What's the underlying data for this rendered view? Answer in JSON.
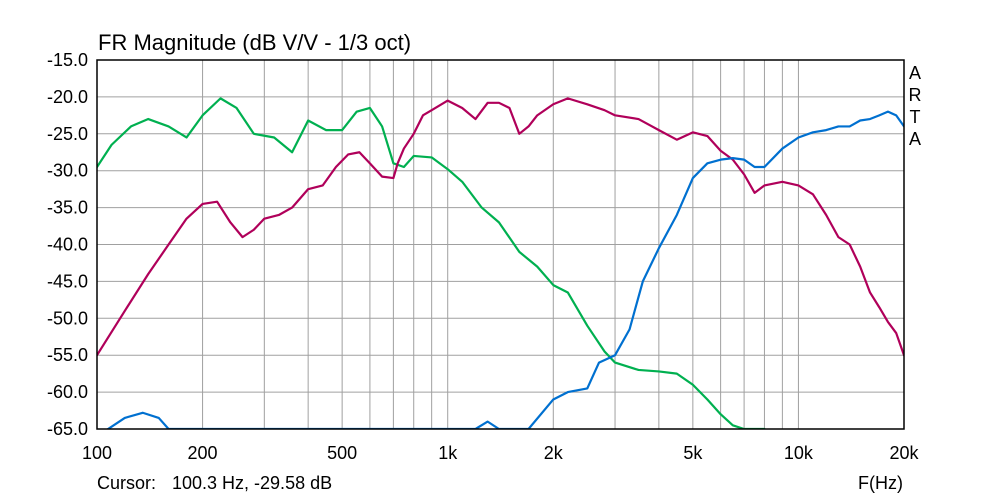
{
  "chart_data": {
    "type": "line",
    "title": "FR Magnitude (dB V/V - 1/3 oct)",
    "xlabel": "F(Hz)",
    "ylabel": "",
    "x_scale": "log",
    "xlim": [
      100,
      20000
    ],
    "ylim": [
      -65,
      -15
    ],
    "grid": true,
    "x_ticks": [
      {
        "value": 100,
        "label": "100"
      },
      {
        "value": 200,
        "label": "200"
      },
      {
        "value": 500,
        "label": "500"
      },
      {
        "value": 1000,
        "label": "1k"
      },
      {
        "value": 2000,
        "label": "2k"
      },
      {
        "value": 5000,
        "label": "5k"
      },
      {
        "value": 10000,
        "label": "10k"
      },
      {
        "value": 20000,
        "label": "20k"
      }
    ],
    "y_ticks": [
      {
        "value": -15,
        "label": "-15.0"
      },
      {
        "value": -20,
        "label": "-20.0"
      },
      {
        "value": -25,
        "label": "-25.0"
      },
      {
        "value": -30,
        "label": "-30.0"
      },
      {
        "value": -35,
        "label": "-35.0"
      },
      {
        "value": -40,
        "label": "-40.0"
      },
      {
        "value": -45,
        "label": "-45.0"
      },
      {
        "value": -50,
        "label": "-50.0"
      },
      {
        "value": -55,
        "label": "-55.0"
      },
      {
        "value": -60,
        "label": "-60.0"
      },
      {
        "value": -65,
        "label": "-65.0"
      }
    ],
    "series": [
      {
        "color": "#00b050",
        "x": [
          100,
          110,
          125,
          140,
          160,
          180,
          200,
          225,
          250,
          280,
          320,
          360,
          400,
          450,
          500,
          550,
          600,
          650,
          700,
          750,
          800,
          900,
          1000,
          1100,
          1250,
          1400,
          1600,
          1800,
          2000,
          2200,
          2500,
          2800,
          3000,
          3500,
          4000,
          4500,
          5000,
          5500,
          6000,
          6500,
          7000,
          8000
        ],
        "y": [
          -29.5,
          -26.5,
          -24,
          -23,
          -24,
          -25.5,
          -22.5,
          -20.2,
          -21.5,
          -25,
          -25.5,
          -27.5,
          -23.2,
          -24.5,
          -24.5,
          -22,
          -21.5,
          -24,
          -29,
          -29.5,
          -28,
          -28.2,
          -29.8,
          -31.5,
          -35,
          -37,
          -41,
          -43,
          -45.5,
          -46.5,
          -51,
          -54.5,
          -56,
          -57,
          -57.2,
          -57.5,
          -59,
          -61,
          -63,
          -64.5,
          -65,
          -65
        ]
      },
      {
        "color": "#b0005a",
        "x": [
          100,
          120,
          140,
          160,
          180,
          200,
          220,
          240,
          260,
          280,
          300,
          330,
          360,
          400,
          440,
          480,
          520,
          560,
          600,
          650,
          700,
          720,
          750,
          800,
          850,
          900,
          1000,
          1100,
          1200,
          1300,
          1400,
          1500,
          1600,
          1700,
          1800,
          2000,
          2200,
          2500,
          2800,
          3000,
          3500,
          4000,
          4500,
          5000,
          5500,
          6000,
          6500,
          7000,
          7500,
          8000,
          9000,
          10000,
          11000,
          12000,
          13000,
          14000,
          15000,
          16000,
          17000,
          18000,
          19000,
          20000
        ],
        "y": [
          -55,
          -49,
          -44,
          -40,
          -36.5,
          -34.5,
          -34.2,
          -37,
          -39,
          -38,
          -36.5,
          -36,
          -35,
          -32.5,
          -32,
          -29.5,
          -27.8,
          -27.5,
          -29,
          -30.8,
          -31,
          -29,
          -27,
          -25,
          -22.5,
          -21.8,
          -20.5,
          -21.5,
          -23,
          -20.8,
          -20.8,
          -21.5,
          -25,
          -24,
          -22.5,
          -21,
          -20.2,
          -21,
          -21.8,
          -22.5,
          -23,
          -24.5,
          -25.8,
          -24.8,
          -25.3,
          -27.3,
          -28.5,
          -30.5,
          -33,
          -32,
          -31.5,
          -32,
          -33.2,
          -36,
          -39,
          -40,
          -43,
          -46.5,
          -48.5,
          -50.5,
          -52,
          -55
        ]
      },
      {
        "color": "#0070d0",
        "x": [
          100,
          120,
          135,
          150,
          160,
          1200,
          1300,
          1400,
          1700,
          2000,
          2200,
          2500,
          2700,
          3000,
          3300,
          3600,
          4000,
          4500,
          5000,
          5500,
          6000,
          6500,
          7000,
          7500,
          8000,
          9000,
          10000,
          11000,
          12000,
          13000,
          14000,
          15000,
          16000,
          17000,
          18000,
          19000,
          20000
        ],
        "y": [
          -66,
          -63.5,
          -62.8,
          -63.5,
          -65,
          -65,
          -64,
          -65,
          -65,
          -61,
          -60,
          -59.5,
          -56,
          -55,
          -51.5,
          -45,
          -40.5,
          -36,
          -31,
          -29,
          -28.5,
          -28.3,
          -28.5,
          -29.5,
          -29.5,
          -27,
          -25.5,
          -24.8,
          -24.5,
          -24,
          -24,
          -23.2,
          -23,
          -22.5,
          -22,
          -22.5,
          -24
        ]
      }
    ],
    "side_label": [
      "A",
      "R",
      "T",
      "A"
    ],
    "cursor": {
      "label": "Cursor:",
      "value": "100.3 Hz, -29.58 dB"
    }
  }
}
